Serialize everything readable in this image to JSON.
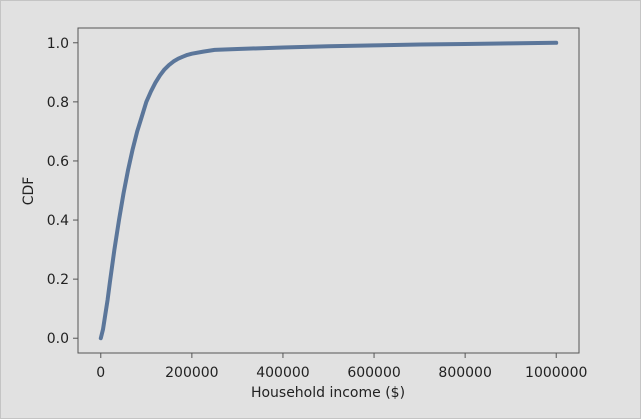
{
  "chart_data": {
    "type": "line",
    "title": "",
    "xlabel": "Household income ($)",
    "ylabel": "CDF",
    "xlim": [
      -50000,
      1050000
    ],
    "ylim": [
      -0.05,
      1.05
    ],
    "xticks": [
      0,
      200000,
      400000,
      600000,
      800000,
      1000000
    ],
    "xtick_labels": [
      "0",
      "200000",
      "400000",
      "600000",
      "800000",
      "1000000"
    ],
    "yticks": [
      0.0,
      0.2,
      0.4,
      0.6,
      0.8,
      1.0
    ],
    "ytick_labels": [
      "0.0",
      "0.2",
      "0.4",
      "0.6",
      "0.8",
      "1.0"
    ],
    "grid": false,
    "series": [
      {
        "name": "CDF",
        "color": "#4c6a92",
        "x": [
          0,
          5000,
          10000,
          15000,
          20000,
          30000,
          40000,
          50000,
          60000,
          70000,
          80000,
          90000,
          100000,
          110000,
          120000,
          130000,
          140000,
          150000,
          160000,
          170000,
          180000,
          190000,
          200000,
          225000,
          250000,
          300000,
          400000,
          500000,
          600000,
          700000,
          800000,
          900000,
          1000000
        ],
        "y": [
          0.0,
          0.03,
          0.08,
          0.13,
          0.19,
          0.3,
          0.4,
          0.49,
          0.57,
          0.64,
          0.7,
          0.75,
          0.8,
          0.835,
          0.865,
          0.89,
          0.91,
          0.925,
          0.937,
          0.946,
          0.953,
          0.959,
          0.963,
          0.97,
          0.976,
          0.979,
          0.984,
          0.988,
          0.991,
          0.994,
          0.996,
          0.998,
          1.0
        ]
      }
    ]
  },
  "colors": {
    "background": "#e1e1e1",
    "axes_edge": "#555555",
    "text": "#222222"
  }
}
